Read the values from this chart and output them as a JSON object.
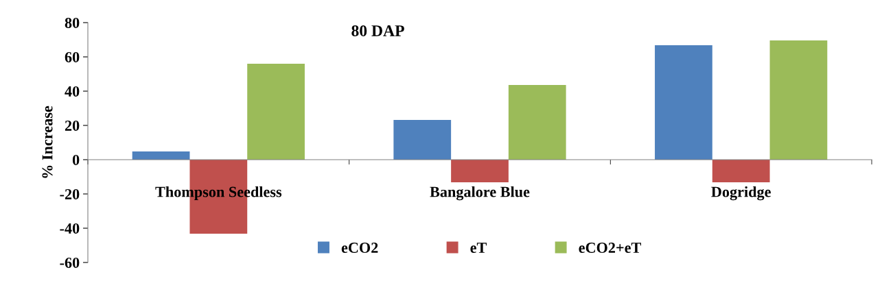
{
  "chart_data": {
    "type": "bar",
    "title": "80 DAP",
    "ylabel": "% Increase",
    "categories": [
      "Thompson Seedless",
      "Bangalore Blue",
      "Dogridge"
    ],
    "series": [
      {
        "name": "eCO2",
        "color": "#4f81bd",
        "values": [
          4.8,
          23.2,
          66.8
        ]
      },
      {
        "name": "eT",
        "color": "#c0504d",
        "values": [
          -43.2,
          -13.2,
          -13.2
        ]
      },
      {
        "name": "eCO2+eT",
        "color": "#9bbb59",
        "values": [
          56,
          43.6,
          69.6
        ]
      }
    ],
    "ylim": [
      -60,
      80
    ],
    "yticks": [
      -60,
      -40,
      -20,
      0,
      20,
      40,
      60,
      80
    ],
    "grid": false,
    "legend": "bottom"
  }
}
